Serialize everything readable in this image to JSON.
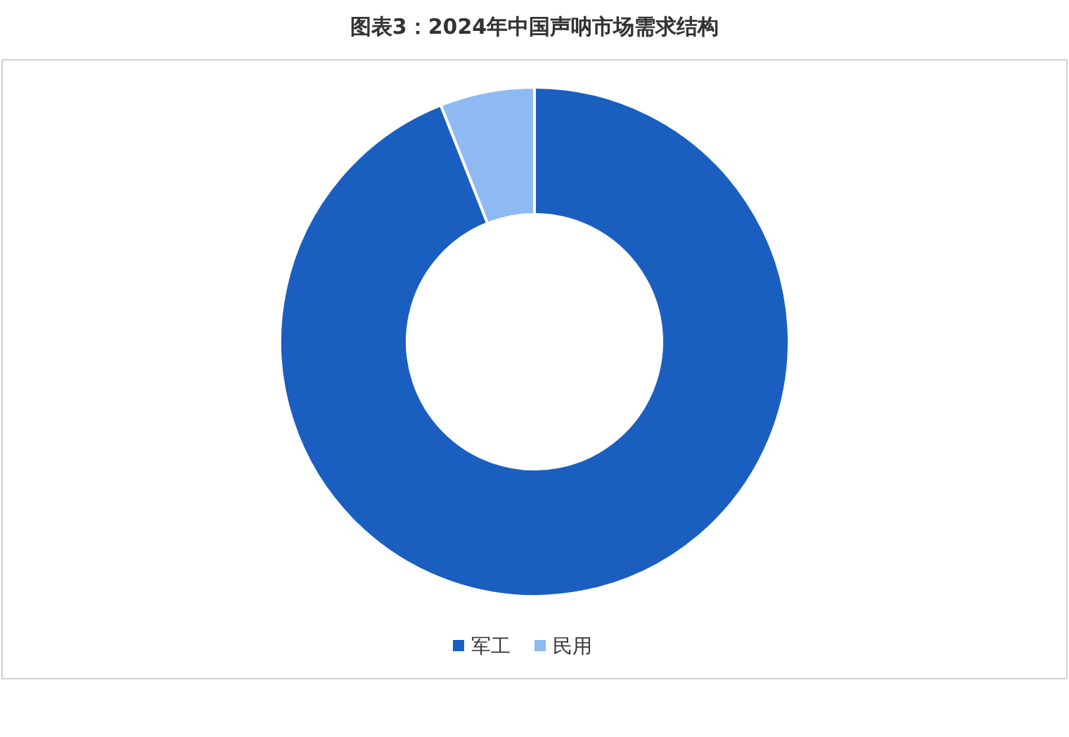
{
  "chart_data": {
    "type": "donut",
    "title": "图表3：2024年中国声呐市场需求结构",
    "categories": [
      "军工",
      "民用"
    ],
    "values": [
      94,
      6
    ],
    "colors": [
      "#1a5fc0",
      "#8fb9f2"
    ],
    "legend": "bottom"
  }
}
